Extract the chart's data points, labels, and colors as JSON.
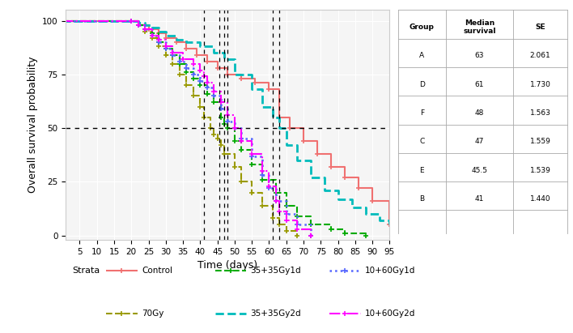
{
  "title": "",
  "xlabel": "Time (days)",
  "ylabel": "Overall survival probability",
  "xlim": [
    1,
    95
  ],
  "ylim": [
    -2,
    105
  ],
  "xticks": [
    5,
    10,
    15,
    20,
    25,
    30,
    35,
    40,
    45,
    50,
    55,
    60,
    65,
    70,
    75,
    80,
    85,
    90,
    95
  ],
  "yticks": [
    0,
    25,
    50,
    75,
    100
  ],
  "hline_y": 50,
  "median_vlines": [
    41,
    45.5,
    47,
    48,
    61,
    63
  ],
  "background_color": "#f5f5f5",
  "grid_color": "#ffffff",
  "table": {
    "headers": [
      "Group",
      "Median\nsurvival",
      "SE"
    ],
    "rows": [
      [
        "A",
        "63",
        "2.061"
      ],
      [
        "D",
        "61",
        "1.730"
      ],
      [
        "F",
        "48",
        "1.563"
      ],
      [
        "C",
        "47",
        "1.559"
      ],
      [
        "E",
        "45.5",
        "1.539"
      ],
      [
        "B",
        "41",
        "1.440"
      ]
    ]
  },
  "km_data": {
    "Control": {
      "times": [
        0,
        20,
        22,
        25,
        28,
        30,
        33,
        36,
        39,
        42,
        45,
        48,
        52,
        56,
        60,
        63,
        66,
        70,
        74,
        78,
        82,
        86,
        90,
        95
      ],
      "surv": [
        100,
        100,
        98,
        96,
        94,
        92,
        90,
        87,
        84,
        81,
        78,
        75,
        73,
        71,
        68,
        55,
        50,
        44,
        38,
        32,
        27,
        22,
        16,
        5
      ],
      "color": "#f07070",
      "ls": "-",
      "lw": 1.5,
      "marker": "+"
    },
    "70Gy": {
      "times": [
        0,
        20,
        22,
        24,
        26,
        28,
        30,
        32,
        34,
        36,
        38,
        40,
        41,
        43,
        44,
        45,
        46,
        47,
        50,
        52,
        55,
        58,
        61,
        63,
        65,
        68
      ],
      "surv": [
        100,
        100,
        98,
        95,
        92,
        88,
        84,
        80,
        75,
        70,
        65,
        60,
        55,
        50,
        47,
        45,
        42,
        38,
        32,
        25,
        20,
        14,
        8,
        5,
        2,
        0
      ],
      "color": "#999900",
      "ls": "--",
      "lw": 1.5,
      "marker": "+"
    },
    "35+35Gy1d": {
      "times": [
        0,
        20,
        22,
        24,
        26,
        28,
        30,
        32,
        34,
        36,
        38,
        40,
        42,
        44,
        46,
        47,
        48,
        50,
        52,
        55,
        58,
        62,
        65,
        68,
        72,
        78,
        82,
        88
      ],
      "surv": [
        100,
        100,
        98,
        96,
        94,
        90,
        87,
        84,
        80,
        76,
        73,
        70,
        66,
        62,
        55,
        52,
        50,
        44,
        40,
        33,
        26,
        20,
        14,
        9,
        5,
        3,
        1,
        0
      ],
      "color": "#00aa00",
      "ls": "--",
      "lw": 1.5,
      "marker": "+"
    },
    "35+35Gy2d": {
      "times": [
        0,
        20,
        22,
        24,
        26,
        28,
        30,
        33,
        36,
        40,
        44,
        47,
        50,
        55,
        58,
        61,
        63,
        65,
        68,
        72,
        76,
        80,
        84,
        88,
        92,
        95
      ],
      "surv": [
        100,
        100,
        99,
        98,
        97,
        95,
        93,
        91,
        90,
        88,
        85,
        82,
        75,
        68,
        60,
        55,
        50,
        42,
        35,
        27,
        21,
        17,
        13,
        10,
        7,
        5
      ],
      "color": "#00bbbb",
      "ls": "--",
      "lw": 2.0,
      "marker": null
    },
    "10+60Gy1d": {
      "times": [
        0,
        20,
        22,
        24,
        26,
        28,
        30,
        32,
        34,
        36,
        38,
        40,
        42,
        44,
        46,
        48,
        50,
        52,
        55,
        58,
        60,
        62,
        65,
        68,
        72
      ],
      "surv": [
        100,
        100,
        98,
        96,
        93,
        90,
        87,
        84,
        81,
        78,
        75,
        72,
        69,
        65,
        59,
        53,
        50,
        45,
        37,
        28,
        22,
        16,
        10,
        5,
        0
      ],
      "color": "#5566ff",
      "ls": ":",
      "lw": 1.8,
      "marker": "+"
    },
    "10+60Gy2d": {
      "times": [
        0,
        20,
        22,
        24,
        26,
        28,
        30,
        32,
        35,
        38,
        40,
        41,
        42,
        44,
        46,
        48,
        50,
        52,
        55,
        58,
        60,
        62,
        63,
        65,
        68,
        72
      ],
      "surv": [
        100,
        100,
        98,
        96,
        93,
        91,
        88,
        85,
        82,
        80,
        77,
        74,
        71,
        67,
        62,
        56,
        50,
        44,
        38,
        30,
        23,
        16,
        11,
        7,
        3,
        0
      ],
      "color": "#ff00ff",
      "ls": "-.",
      "lw": 1.5,
      "marker": "+"
    }
  },
  "legend_entries": [
    {
      "label": "Control",
      "color": "#f07070",
      "ls": "-",
      "marker": "+"
    },
    {
      "label": "35+35Gy1d",
      "color": "#00aa00",
      "ls": "--",
      "marker": "+"
    },
    {
      "label": "10+60Gy1d",
      "color": "#5566ff",
      "ls": ":",
      "marker": "+"
    },
    {
      "label": "70Gy",
      "color": "#999900",
      "ls": "--",
      "marker": "+"
    },
    {
      "label": "35+35Gy2d",
      "color": "#00bbbb",
      "ls": "--",
      "marker": null
    },
    {
      "label": "10+60Gy2d",
      "color": "#ff00ff",
      "ls": "-.",
      "marker": "+"
    }
  ]
}
